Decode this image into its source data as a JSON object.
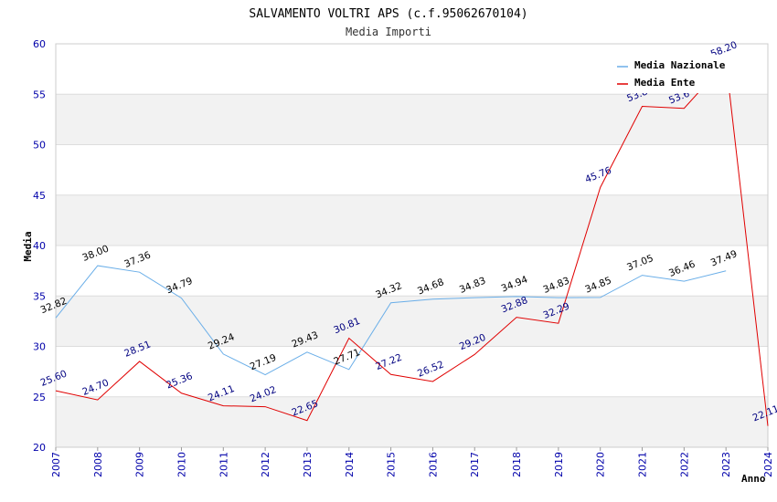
{
  "chart_data": {
    "type": "line",
    "title": "SALVAMENTO VOLTRI APS (c.f.95062670104)",
    "subtitle": "Media Importi",
    "xlabel": "Anno",
    "ylabel": "Media",
    "ylim": [
      20,
      60
    ],
    "yticks": [
      "20",
      "25",
      "30",
      "35",
      "40",
      "45",
      "50",
      "55",
      "60"
    ],
    "categories": [
      "2007",
      "2008",
      "2009",
      "2010",
      "2011",
      "2012",
      "2013",
      "2014",
      "2015",
      "2016",
      "2017",
      "2018",
      "2019",
      "2020",
      "2021",
      "2022",
      "2023",
      "2024"
    ],
    "grid": "horizontal bands",
    "legend_position": "top-right",
    "series": [
      {
        "name": "Media Nazionale",
        "color": "#6aaee8",
        "values": [
          32.82,
          38.0,
          37.36,
          34.79,
          29.24,
          27.19,
          29.43,
          27.71,
          34.32,
          34.68,
          34.83,
          34.94,
          34.83,
          34.85,
          37.05,
          36.46,
          37.49,
          null
        ],
        "labels": [
          "32.82",
          "38.00",
          "37.36",
          "34.79",
          "29.24",
          "27.19",
          "29.43",
          "27.71",
          "34.32",
          "34.68",
          "34.83",
          "34.94",
          "34.83",
          "34.85",
          "37.05",
          "36.46",
          "37.49",
          null
        ]
      },
      {
        "name": "Media Ente",
        "color": "#e00000",
        "values": [
          25.6,
          24.7,
          28.51,
          25.36,
          24.11,
          24.02,
          22.65,
          30.81,
          27.22,
          26.52,
          29.2,
          32.88,
          32.29,
          45.76,
          53.8,
          53.6,
          58.2,
          22.11
        ],
        "labels": [
          "25.60",
          "24.70",
          "28.51",
          "25.36",
          "24.11",
          "24.02",
          "22.65",
          "30.81",
          "27.22",
          "26.52",
          "29.20",
          "32.88",
          "32.29",
          "45.76",
          "53.8",
          "53.6",
          "58.20",
          "22.11"
        ]
      }
    ]
  }
}
